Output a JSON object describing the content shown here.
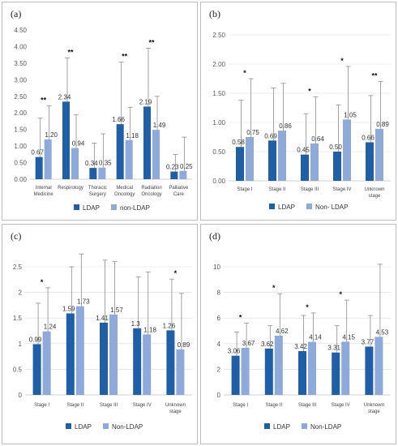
{
  "colors": {
    "series1": "#1f5fa8",
    "series2": "#8eaadb",
    "error_bar": "#8c8c8c",
    "grid": "#d9d9d9"
  },
  "chart_data": [
    {
      "type": "bar",
      "panel_label": "(a)",
      "categories": [
        [
          "Internal",
          "Medicine"
        ],
        [
          "Respirology"
        ],
        [
          "Thoracic",
          "Surgery"
        ],
        [
          "Medical",
          "Oncology"
        ],
        [
          "Radiation",
          "Oncology"
        ],
        [
          "Palliative",
          "Care"
        ]
      ],
      "series": [
        {
          "name": "LDAP",
          "values": [
            0.67,
            2.34,
            0.34,
            1.66,
            2.19,
            0.23
          ],
          "errors": [
            1.17,
            1.32,
            0.75,
            1.87,
            1.76,
            0.52
          ]
        },
        {
          "name": "non-LDAP",
          "values": [
            1.2,
            0.94,
            0.35,
            1.18,
            1.49,
            0.25
          ],
          "errors": [
            1.01,
            1.01,
            1.02,
            0.99,
            1.01,
            1.02
          ]
        }
      ],
      "value_labels": [
        [
          "0.67",
          "2.34",
          "0.34",
          "1.66",
          "2.19",
          "0.23"
        ],
        [
          "1.20",
          "0.94",
          "0.35",
          "1.18",
          "1.49",
          "0.25"
        ]
      ],
      "significance": [
        "**",
        "**",
        "",
        "**",
        "**",
        ""
      ],
      "yticks": [
        "0.00",
        "0.50",
        "1.00",
        "1.50",
        "2.00",
        "2.50",
        "3.00",
        "3.50",
        "4.00",
        "4.50"
      ],
      "ylim": [
        0,
        4.5
      ],
      "grid": false,
      "legend_position": "bottom"
    },
    {
      "type": "bar",
      "panel_label": "(b)",
      "categories": [
        [
          "Stage I"
        ],
        [
          "Stage II"
        ],
        [
          "Stage III"
        ],
        [
          "Stage IV"
        ],
        [
          "Unknown",
          "stage"
        ]
      ],
      "series": [
        {
          "name": "LDAP",
          "values": [
            0.58,
            0.69,
            0.45,
            0.5,
            0.66
          ],
          "errors": [
            0.8,
            0.9,
            0.7,
            0.8,
            0.8
          ]
        },
        {
          "name": "Non- LDAP",
          "values": [
            0.75,
            0.86,
            0.64,
            1.05,
            0.89
          ],
          "errors": [
            1.0,
            0.81,
            0.8,
            0.91,
            0.81
          ]
        }
      ],
      "value_labels": [
        [
          "0.58",
          "0.69",
          "0.45",
          "0.50",
          "0.66"
        ],
        [
          "0.75",
          "0.86",
          "0.64",
          "1.05",
          "0.89"
        ]
      ],
      "significance": [
        "*",
        "",
        "*",
        "*",
        "**"
      ],
      "yticks": [
        "0.00",
        "0.50",
        "1.00",
        "1.50",
        "2.00",
        "2.50"
      ],
      "ylim": [
        0,
        2.5
      ],
      "grid": true,
      "legend_position": "bottom"
    },
    {
      "type": "bar",
      "panel_label": "(c)",
      "categories": [
        [
          "Stage I"
        ],
        [
          "Stage II"
        ],
        [
          "Stage III"
        ],
        [
          "Stage IV"
        ],
        [
          "Unknown",
          "stage"
        ]
      ],
      "series": [
        {
          "name": "LDAP",
          "values": [
            0.99,
            1.59,
            1.41,
            1.3,
            1.26
          ],
          "errors": [
            0.8,
            0.91,
            1.22,
            1.0,
            1.0
          ]
        },
        {
          "name": "Non-LDAP",
          "values": [
            1.24,
            1.73,
            1.57,
            1.18,
            0.89
          ],
          "errors": [
            0.85,
            1.02,
            1.03,
            1.22,
            1.09
          ]
        }
      ],
      "value_labels": [
        [
          "0.99",
          "1.59",
          "1.41",
          "1.3",
          "1.26"
        ],
        [
          "1.24",
          "1.73",
          "1.57",
          "1.18",
          "0.89"
        ]
      ],
      "significance": [
        "*",
        "",
        "",
        "",
        "*"
      ],
      "yticks": [
        "0",
        "0.5",
        "1",
        "1.5",
        "2",
        "2.5"
      ],
      "ylim": [
        0,
        2.5
      ],
      "grid": true,
      "legend_position": "bottom"
    },
    {
      "type": "bar",
      "panel_label": "(d)",
      "categories": [
        [
          "Stage I"
        ],
        [
          "Stage II"
        ],
        [
          "Stage III"
        ],
        [
          "Stage IV"
        ],
        [
          "Unknown",
          "stage"
        ]
      ],
      "series": [
        {
          "name": "LDAP",
          "values": [
            3.06,
            3.62,
            3.42,
            3.31,
            3.77
          ],
          "errors": [
            1.84,
            1.78,
            2.78,
            2.09,
            2.43
          ]
        },
        {
          "name": "Non-LDAP",
          "values": [
            3.67,
            4.62,
            4.14,
            4.15,
            4.53
          ],
          "errors": [
            1.93,
            3.28,
            2.26,
            3.25,
            5.67
          ]
        }
      ],
      "value_labels": [
        [
          "3.06",
          "3.62",
          "3.42",
          "3.31",
          "3.77"
        ],
        [
          "3.67",
          "4.62",
          "4.14",
          "4.15",
          "4.53"
        ]
      ],
      "significance": [
        "*",
        "*",
        "*",
        "*",
        ""
      ],
      "yticks": [
        "0",
        "2",
        "4",
        "6",
        "8",
        "10"
      ],
      "ylim": [
        0,
        10
      ],
      "grid": true,
      "legend_position": "bottom"
    }
  ]
}
